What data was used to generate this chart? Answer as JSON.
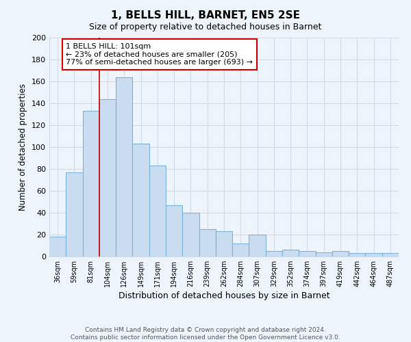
{
  "title": "1, BELLS HILL, BARNET, EN5 2SE",
  "subtitle": "Size of property relative to detached houses in Barnet",
  "xlabel": "Distribution of detached houses by size in Barnet",
  "ylabel": "Number of detached properties",
  "categories": [
    "36sqm",
    "59sqm",
    "81sqm",
    "104sqm",
    "126sqm",
    "149sqm",
    "171sqm",
    "194sqm",
    "216sqm",
    "239sqm",
    "262sqm",
    "284sqm",
    "307sqm",
    "329sqm",
    "352sqm",
    "374sqm",
    "397sqm",
    "419sqm",
    "442sqm",
    "464sqm",
    "487sqm"
  ],
  "values": [
    18,
    77,
    133,
    144,
    164,
    103,
    83,
    47,
    40,
    25,
    23,
    12,
    20,
    5,
    6,
    5,
    4,
    5,
    3,
    3,
    3
  ],
  "bar_color": "#c9dcf0",
  "bar_edge_color": "#7ab4d8",
  "vline_x_index": 3,
  "vline_color": "#cc0000",
  "annotation_text": "1 BELLS HILL: 101sqm\n← 23% of detached houses are smaller (205)\n77% of semi-detached houses are larger (693) →",
  "annotation_box_color": "#ffffff",
  "annotation_box_edge_color": "#cc0000",
  "ylim": [
    0,
    200
  ],
  "yticks": [
    0,
    20,
    40,
    60,
    80,
    100,
    120,
    140,
    160,
    180,
    200
  ],
  "footer_text": "Contains HM Land Registry data © Crown copyright and database right 2024.\nContains public sector information licensed under the Open Government Licence v3.0.",
  "grid_color": "#d0dcea",
  "background_color": "#eef4fb"
}
